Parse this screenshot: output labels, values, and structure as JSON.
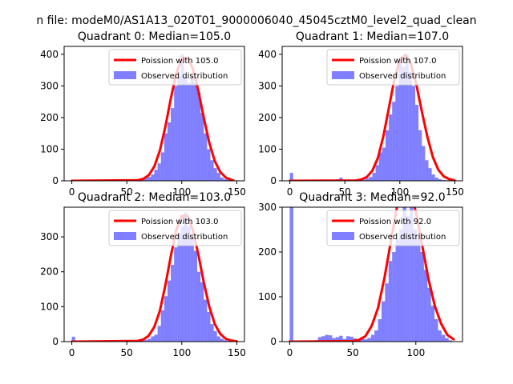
{
  "figure": {
    "suptitle": "n file: modeM0/AS1A13_020T01_9000006040_45045cztM0_level2_quad_clean"
  },
  "colors": {
    "poisson_line": "#ff0000",
    "histogram_fill": "#0000ff",
    "histogram_alpha": 0.5,
    "legend_border": "#cccccc"
  },
  "chart_data": [
    {
      "type": "bar",
      "title": "Quadrant 0: Median=105.0",
      "median": 105.0,
      "xlim": [
        -7,
        157
      ],
      "ylim": [
        0,
        425
      ],
      "xticks": [
        0,
        50,
        100,
        150
      ],
      "yticks": [
        0,
        100,
        200,
        300,
        400
      ],
      "legend_position": "top-right",
      "series": [
        {
          "name": "Poission with 105.0",
          "kind": "line",
          "x": [
            0,
            60,
            65,
            70,
            75,
            80,
            85,
            90,
            95,
            100,
            105,
            110,
            115,
            120,
            125,
            130,
            135,
            140,
            145,
            147
          ],
          "y": [
            0,
            2,
            6,
            18,
            45,
            95,
            170,
            260,
            340,
            385,
            390,
            355,
            285,
            200,
            120,
            62,
            28,
            10,
            3,
            1
          ]
        },
        {
          "name": "Observed distribution",
          "kind": "hist",
          "bin_width": 3,
          "x": [
            0,
            3,
            6,
            9,
            12,
            15,
            18,
            21,
            24,
            27,
            30,
            33,
            36,
            39,
            42,
            45,
            48,
            51,
            54,
            57,
            60,
            63,
            66,
            69,
            72,
            75,
            78,
            81,
            84,
            87,
            90,
            93,
            96,
            99,
            102,
            105,
            108,
            111,
            114,
            117,
            120,
            123,
            126,
            129,
            132,
            135,
            138,
            141,
            144,
            147
          ],
          "y": [
            3,
            1,
            0,
            0,
            0,
            0,
            0,
            0,
            0,
            0,
            0,
            0,
            0,
            0,
            0,
            0,
            0,
            0,
            1,
            2,
            3,
            5,
            10,
            12,
            20,
            35,
            55,
            90,
            150,
            185,
            230,
            300,
            330,
            400,
            330,
            310,
            330,
            310,
            280,
            215,
            150,
            100,
            65,
            40,
            25,
            10,
            5,
            4,
            3,
            1
          ]
        }
      ]
    },
    {
      "type": "bar",
      "title": "Quadrant 1: Median=107.0",
      "median": 107.0,
      "xlim": [
        -7,
        157
      ],
      "ylim": [
        0,
        425
      ],
      "xticks": [
        0,
        50,
        100,
        150
      ],
      "yticks": [
        0,
        100,
        200,
        300,
        400
      ],
      "legend_position": "top-right",
      "series": [
        {
          "name": "Poission with 107.0",
          "kind": "line",
          "x": [
            0,
            60,
            65,
            70,
            75,
            80,
            85,
            90,
            95,
            100,
            105,
            110,
            115,
            120,
            125,
            130,
            135,
            140,
            145,
            150
          ],
          "y": [
            0,
            1,
            4,
            12,
            32,
            72,
            140,
            230,
            320,
            380,
            398,
            370,
            305,
            220,
            140,
            75,
            35,
            14,
            5,
            1
          ]
        },
        {
          "name": "Observed distribution",
          "kind": "hist",
          "bin_width": 3,
          "x": [
            0,
            3,
            6,
            9,
            12,
            15,
            18,
            21,
            24,
            27,
            30,
            33,
            36,
            39,
            42,
            45,
            48,
            51,
            54,
            57,
            60,
            63,
            66,
            69,
            72,
            75,
            78,
            81,
            84,
            87,
            90,
            93,
            96,
            99,
            102,
            105,
            108,
            111,
            114,
            117,
            120,
            123,
            126,
            129,
            132,
            135,
            138,
            141,
            144,
            147,
            150
          ],
          "y": [
            25,
            0,
            0,
            0,
            0,
            0,
            0,
            0,
            0,
            0,
            0,
            0,
            0,
            0,
            5,
            10,
            0,
            0,
            0,
            0,
            0,
            3,
            4,
            8,
            12,
            25,
            50,
            90,
            105,
            160,
            210,
            250,
            300,
            390,
            360,
            400,
            345,
            300,
            240,
            160,
            110,
            65,
            40,
            20,
            10,
            5,
            3,
            2,
            1,
            1,
            0
          ]
        }
      ]
    },
    {
      "type": "bar",
      "title": "Quadrant 2: Median=103.0",
      "median": 103.0,
      "xlim": [
        -7,
        157
      ],
      "ylim": [
        0,
        385
      ],
      "xticks": [
        0,
        50,
        100,
        150
      ],
      "yticks": [
        0,
        100,
        200,
        300
      ],
      "legend_position": "top-right",
      "series": [
        {
          "name": "Poission with 103.0",
          "kind": "line",
          "x": [
            0,
            60,
            65,
            70,
            75,
            80,
            85,
            90,
            95,
            100,
            105,
            110,
            115,
            120,
            125,
            130,
            135,
            140,
            145,
            150
          ],
          "y": [
            0,
            2,
            6,
            17,
            42,
            88,
            160,
            245,
            320,
            360,
            360,
            320,
            250,
            170,
            100,
            50,
            22,
            8,
            3,
            1
          ]
        },
        {
          "name": "Observed distribution",
          "kind": "hist",
          "bin_width": 3,
          "x": [
            0,
            3,
            6,
            9,
            12,
            15,
            18,
            21,
            24,
            27,
            30,
            33,
            36,
            39,
            42,
            45,
            48,
            51,
            54,
            57,
            60,
            63,
            66,
            69,
            72,
            75,
            78,
            81,
            84,
            87,
            90,
            93,
            96,
            99,
            102,
            105,
            108,
            111,
            114,
            117,
            120,
            123,
            126,
            129,
            132,
            135,
            138,
            141,
            144,
            147,
            150
          ],
          "y": [
            14,
            0,
            0,
            0,
            0,
            0,
            0,
            0,
            0,
            0,
            0,
            0,
            0,
            0,
            0,
            0,
            0,
            0,
            0,
            0,
            2,
            3,
            5,
            8,
            15,
            20,
            45,
            90,
            130,
            175,
            220,
            270,
            310,
            330,
            370,
            330,
            300,
            260,
            200,
            170,
            120,
            85,
            50,
            30,
            15,
            8,
            4,
            2,
            1,
            0,
            0
          ]
        }
      ]
    },
    {
      "type": "bar",
      "title": "Quadrant 3: Median=92.0",
      "median": 92.0,
      "xlim": [
        -6,
        137
      ],
      "ylim": [
        0,
        300
      ],
      "xticks": [
        0,
        50,
        100
      ],
      "yticks": [
        0,
        100,
        200,
        300
      ],
      "legend_position": "top-right",
      "series": [
        {
          "name": "Poission with 92.0",
          "kind": "line",
          "x": [
            0,
            50,
            55,
            60,
            65,
            70,
            75,
            80,
            85,
            90,
            95,
            100,
            105,
            110,
            115,
            120,
            125,
            130
          ],
          "y": [
            0,
            1,
            4,
            12,
            35,
            75,
            140,
            220,
            300,
            345,
            340,
            290,
            215,
            140,
            80,
            40,
            15,
            5
          ]
        },
        {
          "name": "Observed distribution",
          "kind": "hist",
          "bin_width": 2.8,
          "x": [
            0,
            2.8,
            5.6,
            8.4,
            11.2,
            14,
            16.8,
            19.6,
            22.4,
            25.2,
            28,
            30.8,
            33.6,
            36.4,
            39.2,
            42,
            44.8,
            47.6,
            50.4,
            53.2,
            56,
            58.8,
            61.6,
            64.4,
            67.2,
            70,
            72.8,
            75.6,
            78.4,
            81.2,
            84,
            86.8,
            89.6,
            92.4,
            95.2,
            98,
            100.8,
            103.6,
            106.4,
            109.2,
            112,
            114.8,
            117.6,
            120.4,
            123.2,
            126,
            128.8,
            131.6
          ],
          "y": [
            300,
            0,
            0,
            0,
            0,
            0,
            0,
            3,
            10,
            12,
            15,
            14,
            8,
            10,
            13,
            6,
            12,
            11,
            7,
            5,
            10,
            5,
            8,
            15,
            25,
            50,
            90,
            130,
            180,
            200,
            230,
            250,
            300,
            280,
            310,
            250,
            230,
            200,
            160,
            120,
            80,
            50,
            25,
            15,
            8,
            3,
            1,
            0
          ]
        }
      ]
    }
  ]
}
